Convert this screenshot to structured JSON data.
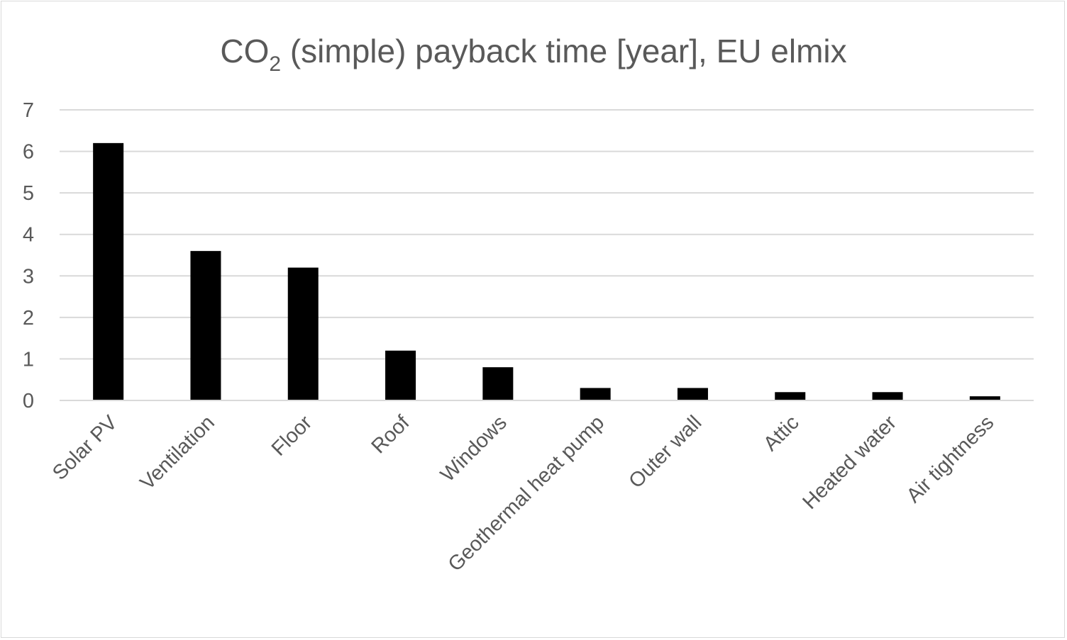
{
  "chart_data": {
    "type": "bar",
    "title": "CO",
    "title_subscript": "2",
    "title_rest": " (simple) payback time [year], EU elmix",
    "categories": [
      "Solar PV",
      "Ventilation",
      "Floor",
      "Roof",
      "Windows",
      "Geothermal heat pump",
      "Outer wall",
      "Attic",
      "Heated water",
      "Air tightness"
    ],
    "values": [
      6.2,
      3.6,
      3.2,
      1.2,
      0.8,
      0.3,
      0.3,
      0.2,
      0.2,
      0.1
    ],
    "ylim": [
      0,
      7
    ],
    "yticks": [
      "0",
      "1",
      "2",
      "3",
      "4",
      "5",
      "6",
      "7"
    ],
    "grid": true,
    "legend": "none",
    "bar_color": "#000000",
    "grid_color": "#d9d9d9",
    "text_color": "#595959"
  }
}
